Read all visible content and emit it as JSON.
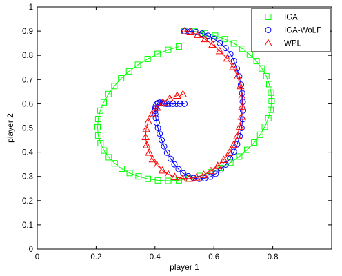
{
  "chart_data": {
    "type": "line",
    "title": "",
    "xlabel": "player 1",
    "ylabel": "player 2",
    "xlim": [
      0,
      1
    ],
    "ylim": [
      0,
      1
    ],
    "xticks": [
      0,
      0.2,
      0.4,
      0.6,
      0.8
    ],
    "xtick_labels": [
      "0",
      "0.2",
      "0.4",
      "0.6",
      "0.8"
    ],
    "yticks": [
      0,
      0.1,
      0.2,
      0.3,
      0.4,
      0.5,
      0.6,
      0.7,
      0.8,
      0.9,
      1
    ],
    "ytick_labels": [
      "0",
      "0.1",
      "0.2",
      "0.3",
      "0.4",
      "0.5",
      "0.6",
      "0.7",
      "0.8",
      "0.9",
      "1"
    ],
    "grid": false,
    "legend_position": "top-right",
    "series": [
      {
        "name": "IGA",
        "color": "#00ff00",
        "marker": "square",
        "x": [
          0.5,
          0.535,
          0.57,
          0.604,
          0.637,
          0.668,
          0.697,
          0.722,
          0.745,
          0.763,
          0.778,
          0.788,
          0.794,
          0.796,
          0.793,
          0.785,
          0.773,
          0.757,
          0.737,
          0.713,
          0.686,
          0.656,
          0.623,
          0.589,
          0.553,
          0.517,
          0.481,
          0.445,
          0.41,
          0.376,
          0.344,
          0.314,
          0.287,
          0.263,
          0.243,
          0.227,
          0.215,
          0.207,
          0.205,
          0.207,
          0.214,
          0.226,
          0.242,
          0.262,
          0.285,
          0.312,
          0.342,
          0.375,
          0.409,
          0.445,
          0.481
        ],
        "y": [
          0.9,
          0.898,
          0.891,
          0.881,
          0.867,
          0.849,
          0.827,
          0.803,
          0.776,
          0.746,
          0.714,
          0.681,
          0.646,
          0.611,
          0.575,
          0.54,
          0.505,
          0.472,
          0.44,
          0.41,
          0.382,
          0.357,
          0.335,
          0.317,
          0.302,
          0.291,
          0.284,
          0.282,
          0.284,
          0.29,
          0.3,
          0.314,
          0.332,
          0.354,
          0.379,
          0.407,
          0.437,
          0.469,
          0.503,
          0.537,
          0.572,
          0.606,
          0.64,
          0.673,
          0.705,
          0.734,
          0.761,
          0.785,
          0.806,
          0.823,
          0.836
        ]
      },
      {
        "name": "IGA-WoLF",
        "color": "#0000ff",
        "marker": "circle",
        "x": [
          0.5,
          0.52,
          0.54,
          0.56,
          0.58,
          0.6,
          0.62,
          0.64,
          0.656,
          0.668,
          0.678,
          0.686,
          0.692,
          0.696,
          0.698,
          0.699,
          0.698,
          0.694,
          0.688,
          0.679,
          0.668,
          0.655,
          0.64,
          0.624,
          0.606,
          0.588,
          0.569,
          0.55,
          0.531,
          0.513,
          0.496,
          0.48,
          0.466,
          0.453,
          0.441,
          0.431,
          0.423,
          0.416,
          0.41,
          0.406,
          0.403,
          0.401,
          0.4,
          0.401,
          0.403,
          0.406,
          0.41,
          0.416,
          0.423,
          0.431,
          0.44,
          0.45,
          0.461,
          0.473,
          0.485,
          0.5
        ],
        "y": [
          0.9,
          0.899,
          0.896,
          0.89,
          0.881,
          0.868,
          0.851,
          0.83,
          0.805,
          0.777,
          0.746,
          0.713,
          0.679,
          0.644,
          0.608,
          0.572,
          0.536,
          0.5,
          0.466,
          0.433,
          0.402,
          0.374,
          0.349,
          0.328,
          0.311,
          0.299,
          0.292,
          0.29,
          0.293,
          0.301,
          0.313,
          0.33,
          0.35,
          0.373,
          0.398,
          0.424,
          0.45,
          0.476,
          0.5,
          0.522,
          0.541,
          0.557,
          0.571,
          0.582,
          0.591,
          0.598,
          0.603,
          0.605,
          0.604,
          0.601,
          0.6,
          0.6,
          0.6,
          0.6,
          0.6,
          0.6
        ]
      },
      {
        "name": "WPL",
        "color": "#ff0000",
        "marker": "triangle",
        "x": [
          0.5,
          0.52,
          0.545,
          0.57,
          0.595,
          0.62,
          0.645,
          0.665,
          0.68,
          0.69,
          0.695,
          0.696,
          0.694,
          0.688,
          0.679,
          0.667,
          0.652,
          0.634,
          0.613,
          0.59,
          0.566,
          0.541,
          0.516,
          0.491,
          0.467,
          0.445,
          0.425,
          0.407,
          0.392,
          0.38,
          0.372,
          0.368,
          0.37,
          0.377,
          0.39,
          0.407,
          0.427,
          0.45,
          0.475,
          0.495
        ],
        "y": [
          0.9,
          0.896,
          0.885,
          0.867,
          0.845,
          0.818,
          0.787,
          0.752,
          0.714,
          0.673,
          0.631,
          0.589,
          0.547,
          0.506,
          0.467,
          0.431,
          0.398,
          0.369,
          0.344,
          0.323,
          0.307,
          0.296,
          0.291,
          0.292,
          0.298,
          0.309,
          0.325,
          0.346,
          0.371,
          0.399,
          0.43,
          0.463,
          0.496,
          0.528,
          0.558,
          0.584,
          0.606,
          0.623,
          0.634,
          0.64
        ]
      }
    ]
  }
}
